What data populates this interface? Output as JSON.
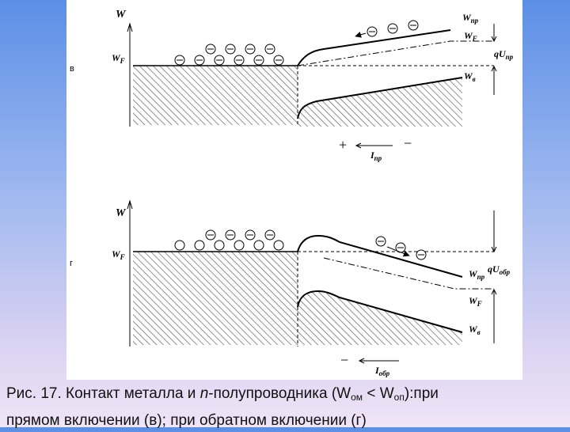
{
  "figure": {
    "top_panel": {
      "section_label": "в",
      "labels": {
        "W": "W",
        "WF": "W",
        "WF_sub": "F",
        "Wpr": "W",
        "Wpr_sub": "пр",
        "WF_right": "W",
        "WF_right_sub": "F",
        "WB": "W",
        "WB_sub": "в",
        "qU": "qU",
        "qU_sub": "пр",
        "current": "I",
        "current_sub": "пр"
      },
      "signs": {
        "left": "+",
        "right": "−"
      }
    },
    "bottom_panel": {
      "section_label": "г",
      "labels": {
        "W": "W",
        "WF": "W",
        "WF_sub": "F",
        "Wpr": "W",
        "Wpr_sub": "пр",
        "WF_right": "W",
        "WF_right_sub": "F",
        "WB": "W",
        "WB_sub": "в",
        "qU": "qU",
        "qU_sub": "обр",
        "current": "I",
        "current_sub": "обр"
      },
      "signs": {
        "left": "−"
      }
    }
  },
  "caption": {
    "part1": "Рис. 17. Контакт металла и ",
    "n_italic": "n",
    "part2": "-полупроводника (W",
    "sub1": "ом",
    "part3": " < W",
    "sub2": "оп",
    "part4": "):при",
    "line2": "прямом включении (в); при обратном включении (г)"
  }
}
